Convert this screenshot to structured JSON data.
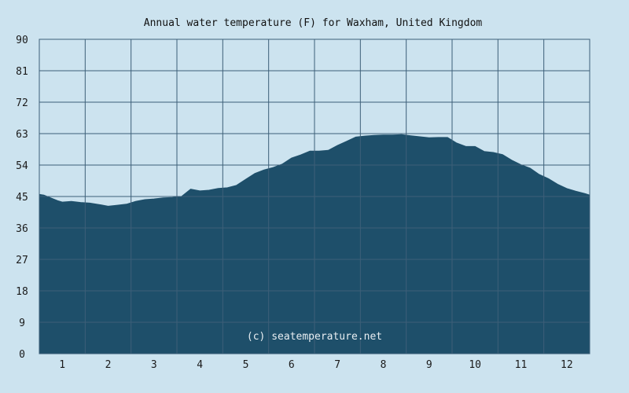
{
  "chart_data": {
    "type": "area",
    "title": "Annual water temperature (F) for Waxham, United Kingdom",
    "xlabel": "",
    "ylabel": "",
    "x_ticks": [
      "1",
      "2",
      "3",
      "4",
      "5",
      "6",
      "7",
      "8",
      "9",
      "10",
      "11",
      "12"
    ],
    "y_ticks": [
      0,
      9,
      18,
      27,
      36,
      45,
      54,
      63,
      72,
      81,
      90
    ],
    "xlim": [
      0.5,
      12.5
    ],
    "ylim": [
      0,
      90
    ],
    "grid": true,
    "watermark": "(c) seatemperature.net",
    "colors": {
      "background": "#cce3ef",
      "fill": "#1e4f6a",
      "grid": "#3d5f78"
    },
    "series": [
      {
        "x": [
          0.5,
          0.6,
          0.75,
          0.9,
          1.0,
          1.2,
          1.4,
          1.6,
          1.8,
          2.0,
          2.2,
          2.4,
          2.6,
          2.8,
          3.0,
          3.2,
          3.4,
          3.6,
          3.8,
          4.0,
          4.2,
          4.4,
          4.6,
          4.8,
          5.0,
          5.2,
          5.4,
          5.6,
          5.8,
          6.0,
          6.2,
          6.4,
          6.6,
          6.8,
          7.0,
          7.2,
          7.4,
          7.6,
          7.8,
          8.0,
          8.2,
          8.4,
          8.6,
          8.8,
          9.0,
          9.2,
          9.4,
          9.6,
          9.8,
          10.0,
          10.2,
          10.4,
          10.6,
          10.8,
          11.0,
          11.2,
          11.4,
          11.6,
          11.8,
          12.0,
          12.2,
          12.4,
          12.5
        ],
        "values": [
          45.6,
          45.4,
          44.6,
          43.8,
          43.4,
          43.6,
          43.3,
          43.1,
          42.7,
          42.2,
          42.5,
          42.8,
          43.6,
          44.1,
          44.3,
          44.6,
          44.7,
          45.0,
          47.1,
          46.6,
          46.8,
          47.3,
          47.5,
          48.2,
          49.9,
          51.6,
          52.6,
          53.3,
          54.3,
          56.0,
          56.9,
          58.0,
          58.0,
          58.2,
          59.6,
          60.8,
          62.0,
          62.3,
          62.5,
          62.6,
          62.6,
          62.7,
          62.4,
          62.1,
          61.8,
          61.9,
          61.9,
          60.3,
          59.3,
          59.3,
          57.9,
          57.6,
          57.0,
          55.4,
          54.1,
          53.1,
          51.3,
          50.1,
          48.5,
          47.3,
          46.5,
          45.8,
          45.4
        ]
      }
    ]
  }
}
